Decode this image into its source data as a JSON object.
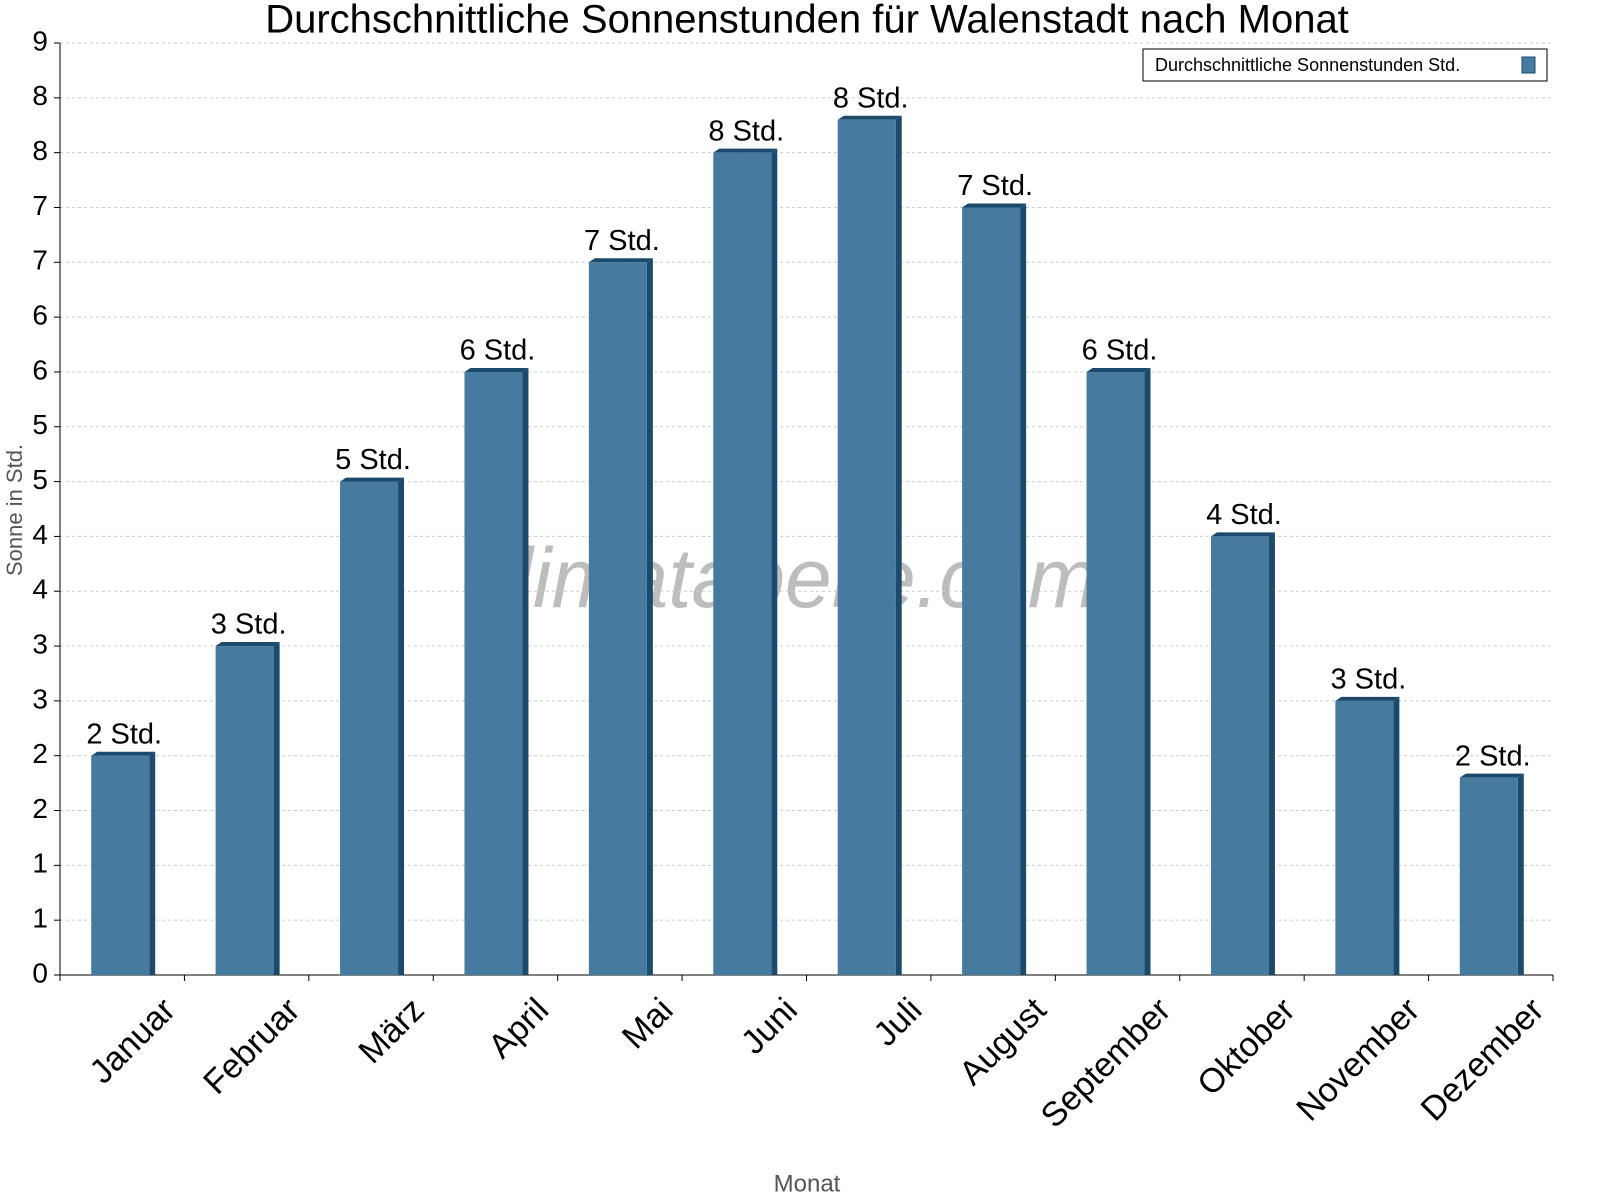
{
  "chart_data": {
    "type": "bar",
    "title": "Durchschnittliche Sonnenstunden für Walenstadt nach Monat",
    "watermark": "klimatabelle.com",
    "x_label": "Monat",
    "y_label": "Sonne in Std.",
    "categories": [
      "Januar",
      "Februar",
      "März",
      "April",
      "Mai",
      "Juni",
      "Juli",
      "August",
      "September",
      "Oktober",
      "November",
      "Dezember"
    ],
    "series": [
      {
        "name": "Durchschnittliche Sonnenstunden Std.",
        "color": "#467a9e",
        "values": [
          2.0,
          3.0,
          4.5,
          5.5,
          6.5,
          7.5,
          7.8,
          7.0,
          5.5,
          4.0,
          2.5,
          1.8
        ],
        "value_labels": [
          "2 Std.",
          "3 Std.",
          "5 Std.",
          "6 Std.",
          "7 Std.",
          "8 Std.",
          "8 Std.",
          "7 Std.",
          "6 Std.",
          "4 Std.",
          "3 Std.",
          "2 Std."
        ]
      }
    ],
    "ylim": [
      0,
      8.5
    ],
    "yticks": [
      0,
      {
        "value": 0.5,
        "label": "1"
      },
      1,
      {
        "value": 1.5,
        "label": "2"
      },
      2,
      {
        "value": 2.5,
        "label": "3"
      },
      3,
      {
        "value": 3.5,
        "label": "4"
      },
      4,
      {
        "value": 4.5,
        "label": "5"
      },
      5,
      {
        "value": 5.5,
        "label": "6"
      },
      6,
      {
        "value": 6.5,
        "label": "7"
      },
      7,
      {
        "value": 7.5,
        "label": "8"
      },
      8,
      {
        "value": 8.5,
        "label": "9"
      }
    ],
    "grid": true,
    "legend": "top-right"
  }
}
